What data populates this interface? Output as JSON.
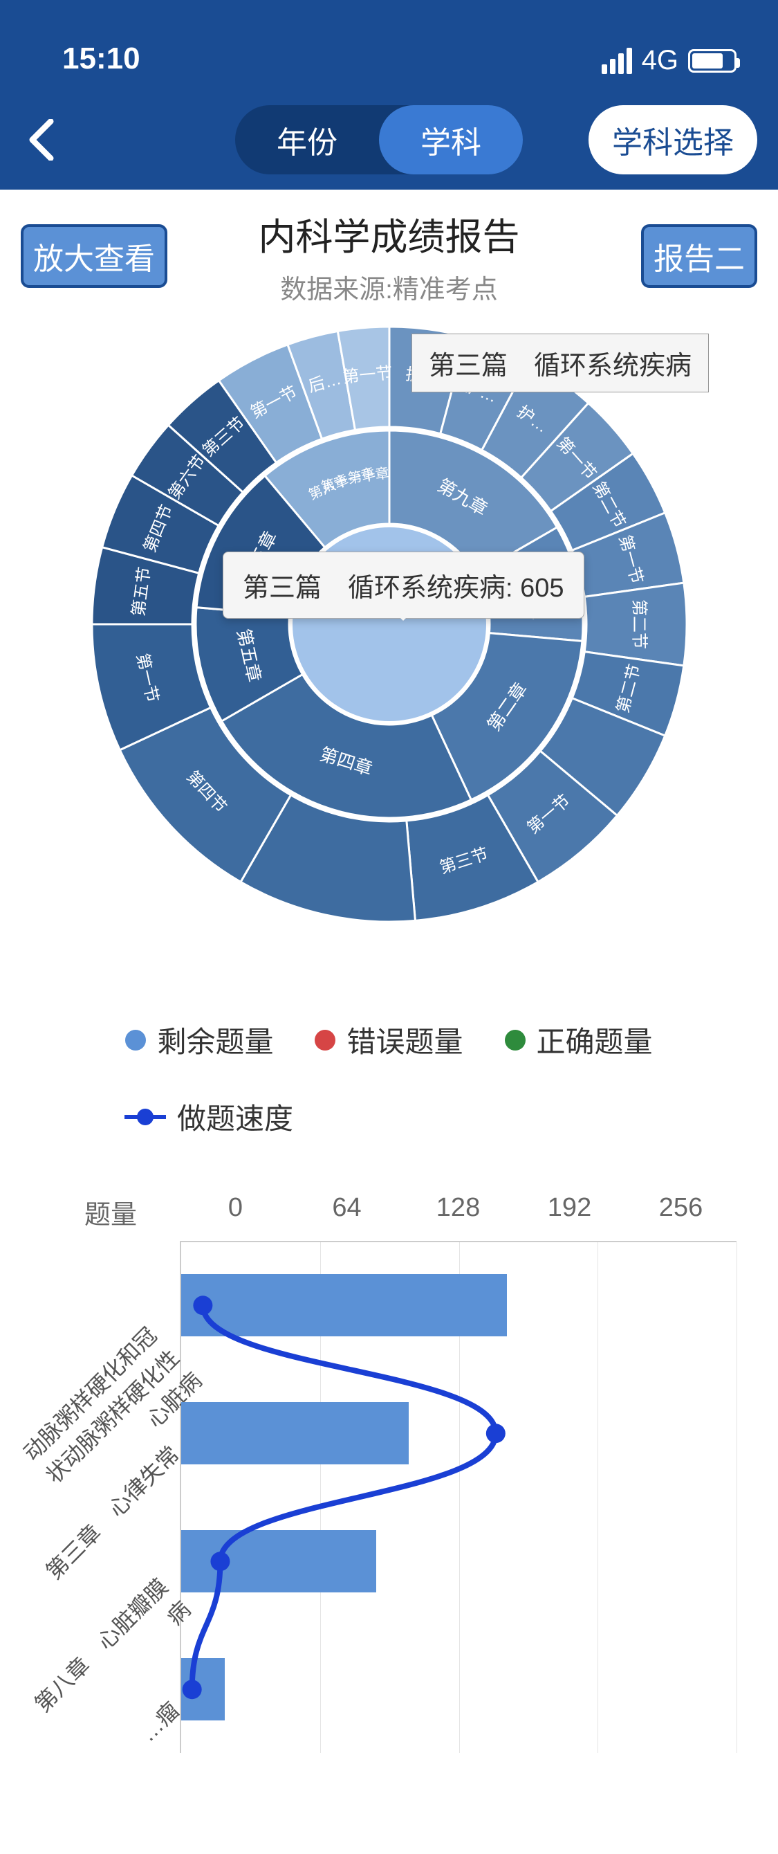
{
  "status": {
    "time": "15:10",
    "network": "4G"
  },
  "header": {
    "tabs": [
      {
        "label": "年份",
        "active": false
      },
      {
        "label": "学科",
        "active": true
      }
    ],
    "subject_select": "学科选择"
  },
  "report": {
    "title": "内科学成绩报告",
    "subtitle": "数据来源:精准考点",
    "zoom_label": "放大查看",
    "report2_label": "报告二"
  },
  "sunburst": {
    "center_color": "#a2c3ea",
    "top_label": "第三篇　循环系统疾病",
    "tooltip_text": "第三篇　循环系统疾病: 605",
    "ring1_segments": [
      {
        "start": 0,
        "end": 60,
        "color": "#6b93c0",
        "label": "第九章"
      },
      {
        "start": 60,
        "end": 95,
        "color": "#5a85b6",
        "label": "第六章"
      },
      {
        "start": 95,
        "end": 155,
        "color": "#4b78ab",
        "label": "第二章"
      },
      {
        "start": 155,
        "end": 240,
        "color": "#3e6ca0",
        "label": "第四章"
      },
      {
        "start": 240,
        "end": 275,
        "color": "#325f94",
        "label": "第五章"
      },
      {
        "start": 275,
        "end": 320,
        "color": "#2a5488",
        "label": "第三章"
      },
      {
        "start": 320,
        "end": 360,
        "color": "#89aed6",
        "label": ""
      }
    ],
    "ring1_inner_labels": [
      "第十章",
      "第十一章",
      "第八章"
    ],
    "ring2_segments": [
      {
        "start": 0,
        "end": 15,
        "color": "#6b93c0",
        "label": "护…"
      },
      {
        "start": 15,
        "end": 28,
        "color": "#6b93c0",
        "label": "护…"
      },
      {
        "start": 28,
        "end": 42,
        "color": "#6b93c0",
        "label": "护…"
      },
      {
        "start": 42,
        "end": 55,
        "color": "#6b93c0",
        "label": "第一节"
      },
      {
        "start": 55,
        "end": 68,
        "color": "#5a85b6",
        "label": "第二节"
      },
      {
        "start": 68,
        "end": 82,
        "color": "#5a85b6",
        "label": "第一节"
      },
      {
        "start": 82,
        "end": 98,
        "color": "#5a85b6",
        "label": "第二节"
      },
      {
        "start": 98,
        "end": 112,
        "color": "#4b78ab",
        "label": "第二节"
      },
      {
        "start": 112,
        "end": 130,
        "color": "#4b78ab",
        "label": ""
      },
      {
        "start": 130,
        "end": 150,
        "color": "#4b78ab",
        "label": "第一节"
      },
      {
        "start": 150,
        "end": 175,
        "color": "#3e6ca0",
        "label": "第三节"
      },
      {
        "start": 175,
        "end": 210,
        "color": "#3e6ca0",
        "label": ""
      },
      {
        "start": 210,
        "end": 245,
        "color": "#3e6ca0",
        "label": "第四节"
      },
      {
        "start": 245,
        "end": 270,
        "color": "#325f94",
        "label": "第一节"
      },
      {
        "start": 270,
        "end": 285,
        "color": "#2a5488",
        "label": "第五节"
      },
      {
        "start": 285,
        "end": 300,
        "color": "#2a5488",
        "label": "第四节"
      },
      {
        "start": 300,
        "end": 312,
        "color": "#2a5488",
        "label": "第六节"
      },
      {
        "start": 312,
        "end": 325,
        "color": "#2a5488",
        "label": "第三节"
      },
      {
        "start": 325,
        "end": 340,
        "color": "#89aed6",
        "label": "第一节"
      },
      {
        "start": 340,
        "end": 350,
        "color": "#9cbce0",
        "label": "后…"
      },
      {
        "start": 350,
        "end": 360,
        "color": "#a8c5e5",
        "label": "第一节"
      }
    ]
  },
  "legend": {
    "items": [
      {
        "color": "#5b91d6",
        "label": "剩余题量",
        "type": "dot"
      },
      {
        "color": "#d64545",
        "label": "错误题量",
        "type": "dot"
      },
      {
        "color": "#2e8b3c",
        "label": "正确题量",
        "type": "dot"
      },
      {
        "color": "#1a3fd4",
        "label": "做题速度",
        "type": "line"
      }
    ]
  },
  "bar_chart": {
    "y_title": "题量",
    "x_ticks": [
      "0",
      "64",
      "128",
      "192",
      "256"
    ],
    "x_max": 256,
    "categories": [
      {
        "label": "动脉粥样硬化和冠状动脉粥样硬化性心脏病",
        "value": 150,
        "speed": 10
      },
      {
        "label": "第三章　心律失常",
        "value": 105,
        "speed": 145
      },
      {
        "label": "第八章　心脏瓣膜病",
        "value": 90,
        "speed": 18
      },
      {
        "label": "…瘤",
        "value": 20,
        "speed": 5
      }
    ],
    "colors": {
      "bar": "#5b91d6",
      "line": "#1a3fd4",
      "grid": "#e5e5e5"
    }
  }
}
